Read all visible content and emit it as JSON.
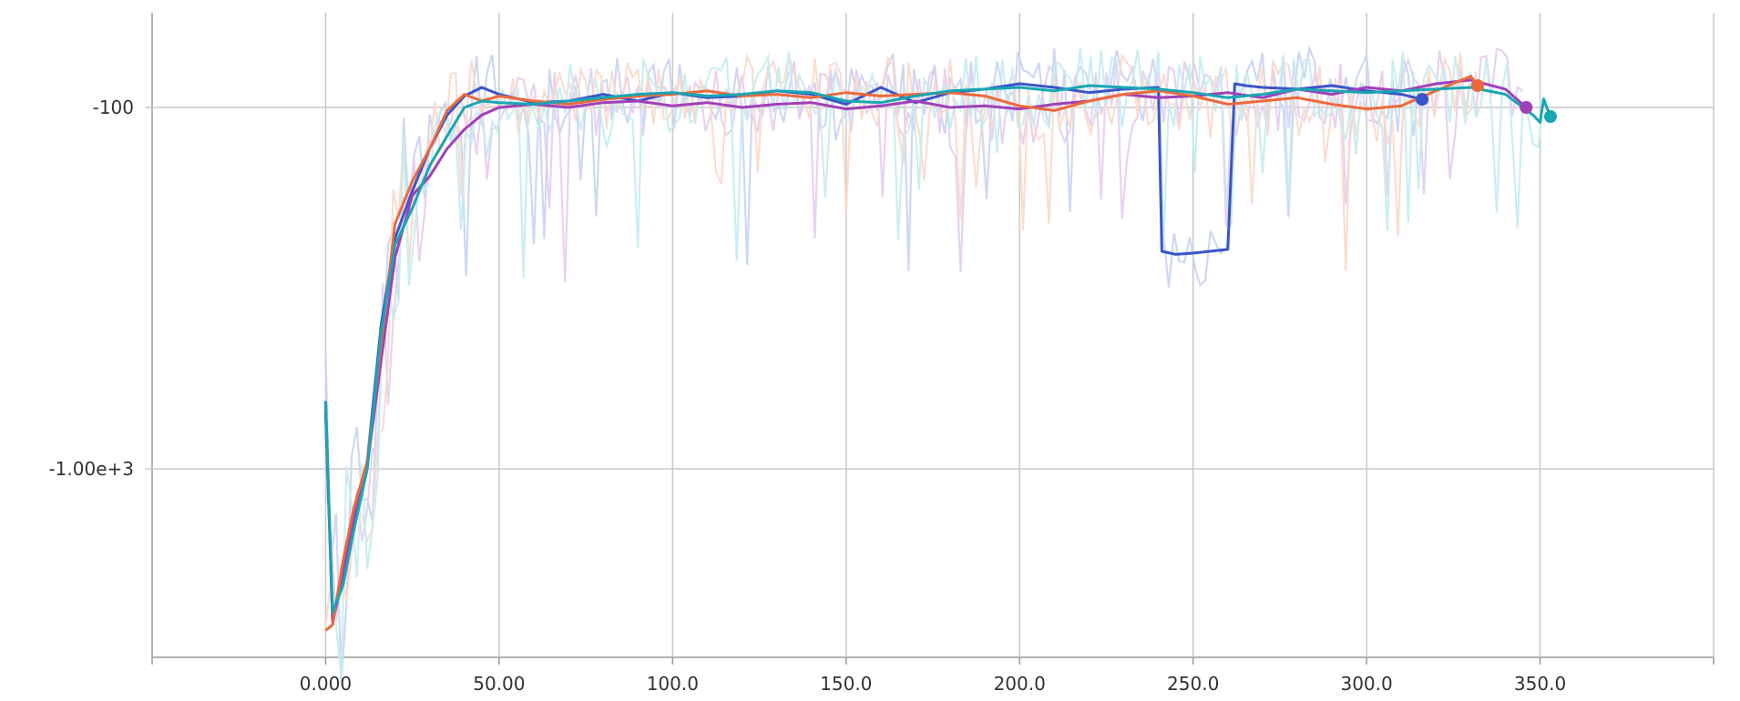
{
  "chart_data": {
    "type": "line",
    "title": "",
    "xlabel": "",
    "ylabel": "",
    "y_scale": "log",
    "grid": true,
    "legend": "none",
    "xlim": [
      -50,
      400
    ],
    "ylim_neg": [
      -3000,
      -60
    ],
    "x_ticks": [
      {
        "value": 0,
        "label": "0.000"
      },
      {
        "value": 50,
        "label": "50.00"
      },
      {
        "value": 100,
        "label": "100.0"
      },
      {
        "value": 150,
        "label": "150.0"
      },
      {
        "value": 200,
        "label": "200.0"
      },
      {
        "value": 250,
        "label": "250.0"
      },
      {
        "value": 300,
        "label": "300.0"
      },
      {
        "value": 350,
        "label": "350.0"
      }
    ],
    "y_ticks": [
      {
        "value": -100,
        "label": "-100"
      },
      {
        "value": -1000,
        "label": "-1.00e+3"
      }
    ],
    "series": [
      {
        "color": "#3a55c8",
        "raw_color": "#c9d4f2",
        "x": [
          0,
          2,
          5,
          8,
          12,
          16,
          20,
          25,
          30,
          35,
          40,
          45,
          50,
          60,
          70,
          80,
          90,
          100,
          110,
          120,
          130,
          140,
          150,
          160,
          170,
          180,
          190,
          200,
          210,
          220,
          230,
          240,
          241,
          245,
          250,
          255,
          260,
          262,
          265,
          270,
          280,
          290,
          300,
          310,
          316
        ],
        "y": [
          -700,
          -2600,
          -1900,
          -1400,
          -950,
          -400,
          -230,
          -170,
          -130,
          -105,
          -93,
          -88,
          -92,
          -97,
          -96,
          -92,
          -96,
          -91,
          -94,
          -93,
          -90,
          -92,
          -98,
          -88,
          -97,
          -91,
          -89,
          -86,
          -88,
          -91,
          -89,
          -88,
          -250,
          -255,
          -253,
          -250,
          -247,
          -86,
          -87,
          -88,
          -89,
          -87,
          -90,
          -92,
          -95
        ]
      },
      {
        "color": "#a040b8",
        "raw_color": "#e6cdf0",
        "x": [
          0,
          2,
          5,
          8,
          12,
          16,
          20,
          25,
          30,
          35,
          40,
          45,
          50,
          60,
          70,
          80,
          90,
          100,
          110,
          120,
          130,
          140,
          150,
          160,
          170,
          180,
          190,
          200,
          210,
          220,
          230,
          240,
          250,
          260,
          270,
          280,
          290,
          300,
          310,
          320,
          330,
          340,
          346
        ],
        "y": [
          -650,
          -2650,
          -2000,
          -1400,
          -980,
          -500,
          -260,
          -175,
          -155,
          -130,
          -115,
          -105,
          -100,
          -98,
          -100,
          -97,
          -96,
          -99,
          -97,
          -100,
          -98,
          -97,
          -101,
          -99,
          -96,
          -100,
          -99,
          -101,
          -98,
          -96,
          -92,
          -94,
          -93,
          -91,
          -94,
          -89,
          -92,
          -88,
          -90,
          -86,
          -84,
          -89,
          -100
        ]
      },
      {
        "color": "#ec6a3a",
        "raw_color": "#fbd9cb",
        "x": [
          0,
          2,
          5,
          8,
          12,
          16,
          20,
          25,
          30,
          35,
          40,
          45,
          50,
          60,
          70,
          80,
          90,
          100,
          110,
          120,
          130,
          140,
          150,
          160,
          170,
          180,
          190,
          200,
          210,
          220,
          230,
          240,
          250,
          260,
          270,
          280,
          290,
          300,
          310,
          320,
          330,
          332
        ],
        "y": [
          -2800,
          -2700,
          -1800,
          -1300,
          -950,
          -450,
          -210,
          -160,
          -130,
          -102,
          -92,
          -96,
          -93,
          -96,
          -98,
          -95,
          -93,
          -92,
          -90,
          -93,
          -92,
          -94,
          -91,
          -93,
          -92,
          -91,
          -93,
          -99,
          -102,
          -96,
          -92,
          -90,
          -93,
          -98,
          -96,
          -94,
          -98,
          -101,
          -99,
          -90,
          -82,
          -87
        ]
      },
      {
        "color": "#18a6b2",
        "raw_color": "#c6ecf0",
        "x": [
          0,
          2,
          5,
          8,
          12,
          16,
          20,
          25,
          30,
          35,
          40,
          45,
          50,
          60,
          70,
          80,
          90,
          100,
          110,
          120,
          130,
          140,
          150,
          160,
          170,
          180,
          190,
          200,
          210,
          220,
          230,
          240,
          250,
          260,
          270,
          280,
          290,
          300,
          310,
          320,
          330,
          340,
          348,
          350,
          351,
          353
        ],
        "y": [
          -650,
          -2500,
          -2100,
          -1500,
          -1000,
          -420,
          -240,
          -190,
          -145,
          -120,
          -100,
          -96,
          -97,
          -98,
          -96,
          -94,
          -92,
          -91,
          -93,
          -92,
          -90,
          -91,
          -96,
          -97,
          -93,
          -90,
          -89,
          -88,
          -90,
          -87,
          -88,
          -89,
          -91,
          -94,
          -92,
          -89,
          -90,
          -91,
          -90,
          -89,
          -88,
          -92,
          -105,
          -110,
          -95,
          -106
        ]
      }
    ],
    "end_markers": [
      {
        "x": 316,
        "y": -95,
        "color": "#3a55c8"
      },
      {
        "x": 332,
        "y": -87,
        "color": "#ec6a3a"
      },
      {
        "x": 346,
        "y": -100,
        "color": "#a040b8"
      },
      {
        "x": 353,
        "y": -106,
        "color": "#18a6b2"
      }
    ]
  }
}
